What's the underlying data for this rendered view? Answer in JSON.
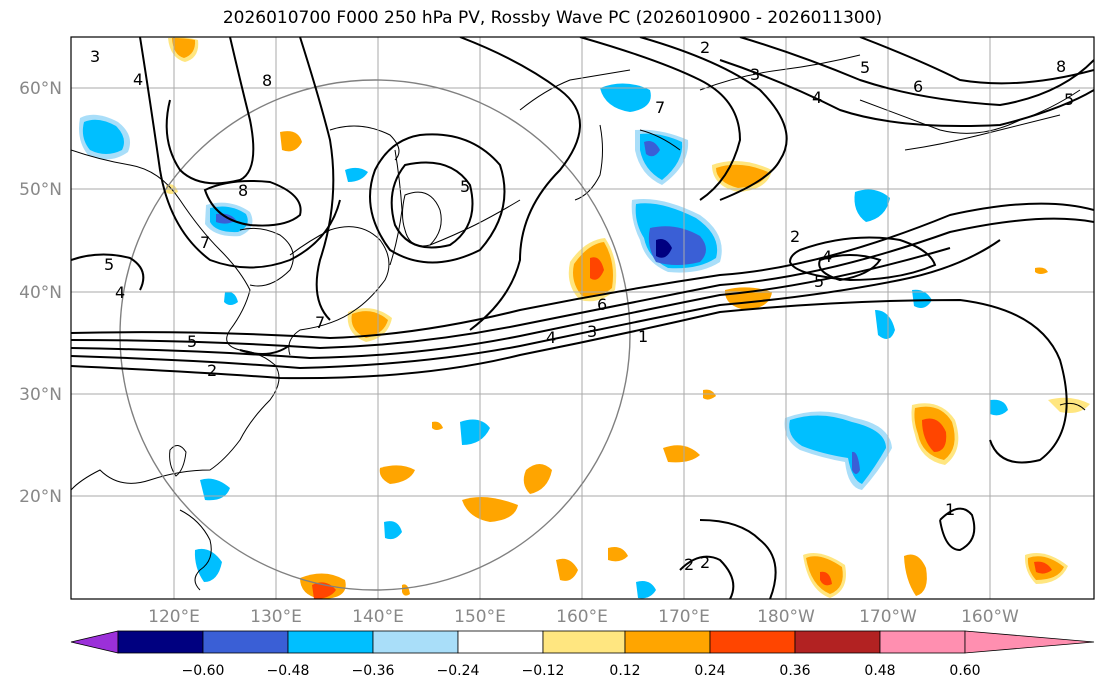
{
  "title": "2026010700 F000 250 hPa PV, Rossby Wave PC (2026010900 - 2026011300)",
  "lat_labels": [
    "60°N",
    "50°N",
    "40°N",
    "30°N",
    "20°N"
  ],
  "lon_labels": [
    "120°E",
    "130°E",
    "140°E",
    "150°E",
    "160°E",
    "170°E",
    "180°W",
    "170°W",
    "160°W"
  ],
  "colorbar": {
    "colors": [
      "#9b30d9",
      "#000080",
      "#3a5fd6",
      "#00bfff",
      "#a9def9",
      "#ffffff",
      "#ffe680",
      "#ffa500",
      "#ff4500",
      "#b22222",
      "#ff8fb0"
    ],
    "tick_labels": [
      "−0.60",
      "−0.48",
      "−0.36",
      "−0.24",
      "−0.12",
      "0.12",
      "0.24",
      "0.36",
      "0.48",
      "0.60"
    ]
  },
  "contour_labels": [
    "3",
    "4",
    "8",
    "8",
    "7",
    "5",
    "4",
    "5",
    "5",
    "2",
    "7",
    "2",
    "3",
    "4",
    "5",
    "6",
    "7",
    "8",
    "5",
    "6",
    "1",
    "2",
    "3",
    "4",
    "2",
    "4",
    "5",
    "1",
    "2"
  ]
}
